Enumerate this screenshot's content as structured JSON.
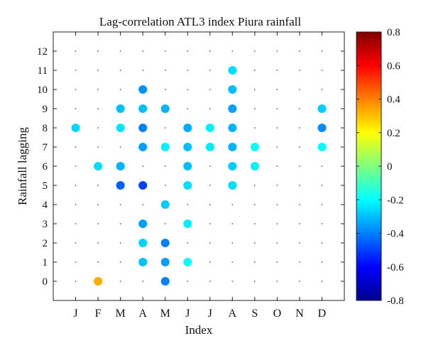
{
  "chart_data": {
    "type": "scatter",
    "title": "Lag-correlation ATL3 index Piura rainfall",
    "xlabel": "Index",
    "ylabel": "Rainfall lagging",
    "categories": [
      "J",
      "F",
      "M",
      "A",
      "M",
      "J",
      "J",
      "A",
      "S",
      "O",
      "N",
      "D"
    ],
    "y_ticks": [
      0,
      1,
      2,
      3,
      4,
      5,
      6,
      7,
      8,
      9,
      10,
      11,
      12
    ],
    "ylim": [
      -1,
      13
    ],
    "grid": "dotted grid points at every month/lag pair",
    "colorbar": {
      "min": -0.8,
      "max": 0.8,
      "ticks": [
        -0.8,
        -0.6,
        -0.4,
        -0.2,
        0,
        0.2,
        0.4,
        0.6,
        0.8
      ],
      "tick_labels": [
        "-0.8",
        "-0.6",
        "-0.4",
        "-0.2",
        "0",
        "0.2",
        "0.4",
        "0.6",
        "0.8"
      ],
      "colormap": "jet",
      "placement": "right"
    },
    "points": [
      {
        "month": 1,
        "lag": 8,
        "value": -0.26
      },
      {
        "month": 2,
        "lag": 0,
        "value": 0.33
      },
      {
        "month": 2,
        "lag": 6,
        "value": -0.25
      },
      {
        "month": 3,
        "lag": 5,
        "value": -0.45
      },
      {
        "month": 3,
        "lag": 6,
        "value": -0.32
      },
      {
        "month": 3,
        "lag": 8,
        "value": -0.24
      },
      {
        "month": 3,
        "lag": 9,
        "value": -0.3
      },
      {
        "month": 4,
        "lag": 1,
        "value": -0.3
      },
      {
        "month": 4,
        "lag": 2,
        "value": -0.27
      },
      {
        "month": 4,
        "lag": 3,
        "value": -0.35
      },
      {
        "month": 4,
        "lag": 5,
        "value": -0.5
      },
      {
        "month": 4,
        "lag": 7,
        "value": -0.35
      },
      {
        "month": 4,
        "lag": 8,
        "value": -0.4
      },
      {
        "month": 4,
        "lag": 9,
        "value": -0.3
      },
      {
        "month": 4,
        "lag": 10,
        "value": -0.37
      },
      {
        "month": 5,
        "lag": 0,
        "value": -0.4
      },
      {
        "month": 5,
        "lag": 1,
        "value": -0.35
      },
      {
        "month": 5,
        "lag": 2,
        "value": -0.4
      },
      {
        "month": 5,
        "lag": 4,
        "value": -0.28
      },
      {
        "month": 5,
        "lag": 7,
        "value": -0.22
      },
      {
        "month": 5,
        "lag": 9,
        "value": -0.32
      },
      {
        "month": 6,
        "lag": 1,
        "value": -0.2
      },
      {
        "month": 6,
        "lag": 3,
        "value": -0.22
      },
      {
        "month": 6,
        "lag": 5,
        "value": -0.25
      },
      {
        "month": 6,
        "lag": 6,
        "value": -0.3
      },
      {
        "month": 6,
        "lag": 7,
        "value": -0.3
      },
      {
        "month": 6,
        "lag": 8,
        "value": -0.33
      },
      {
        "month": 7,
        "lag": 7,
        "value": -0.23
      },
      {
        "month": 7,
        "lag": 8,
        "value": -0.22
      },
      {
        "month": 8,
        "lag": 5,
        "value": -0.25
      },
      {
        "month": 8,
        "lag": 6,
        "value": -0.28
      },
      {
        "month": 8,
        "lag": 7,
        "value": -0.32
      },
      {
        "month": 8,
        "lag": 8,
        "value": -0.32
      },
      {
        "month": 8,
        "lag": 9,
        "value": -0.35
      },
      {
        "month": 8,
        "lag": 10,
        "value": -0.3
      },
      {
        "month": 8,
        "lag": 11,
        "value": -0.25
      },
      {
        "month": 9,
        "lag": 6,
        "value": -0.22
      },
      {
        "month": 9,
        "lag": 7,
        "value": -0.2
      },
      {
        "month": 12,
        "lag": 7,
        "value": -0.2
      },
      {
        "month": 12,
        "lag": 8,
        "value": -0.38
      },
      {
        "month": 12,
        "lag": 9,
        "value": -0.28
      }
    ]
  }
}
